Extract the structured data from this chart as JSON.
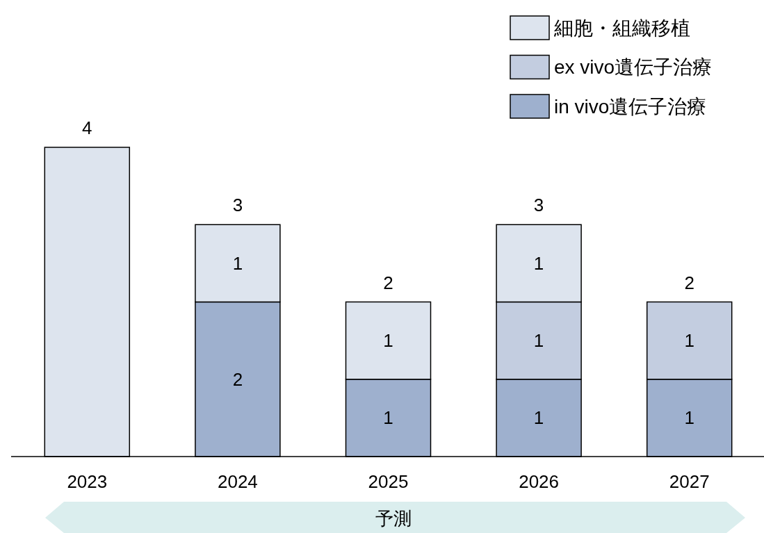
{
  "chart_data": {
    "type": "bar",
    "stacked": true,
    "categories": [
      "2023",
      "2024",
      "2025",
      "2026",
      "2027"
    ],
    "series": [
      {
        "name": "in vivo遺伝子治療",
        "color": "#9eb0ce",
        "values": [
          null,
          2,
          1,
          1,
          1
        ],
        "value_labels": [
          null,
          "2",
          "1",
          "1",
          "1"
        ]
      },
      {
        "name": "ex vivo遺伝子治療",
        "color": "#c3cde0",
        "values": [
          null,
          null,
          null,
          1,
          1
        ],
        "value_labels": [
          null,
          null,
          null,
          "1",
          "1"
        ]
      },
      {
        "name": "細胞・組織移植",
        "color": "#dde4ee",
        "values": [
          4,
          1,
          1,
          1,
          null
        ],
        "value_labels": [
          null,
          "1",
          "1",
          "1",
          null
        ]
      }
    ],
    "totals": [
      "4",
      "3",
      "2",
      "3",
      "2"
    ],
    "legend": "top right",
    "annotations": [
      "予測"
    ]
  }
}
